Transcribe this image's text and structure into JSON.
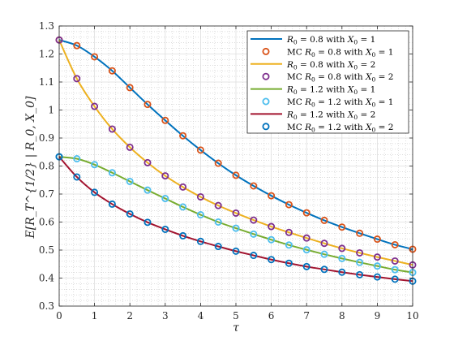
{
  "chart_data": {
    "type": "line",
    "xlabel": "τ",
    "ylabel": "E[R_T^{1/2} | R_0, X_0]",
    "xlim": [
      0,
      10
    ],
    "ylim": [
      0.3,
      1.3
    ],
    "xticks": [
      0,
      1,
      2,
      3,
      4,
      5,
      6,
      7,
      8,
      9,
      10
    ],
    "yticks": [
      0.3,
      0.4,
      0.5,
      0.6,
      0.7,
      0.8,
      0.9,
      1.0,
      1.1,
      1.2,
      1.3
    ],
    "ytick_labels": [
      "0.3",
      "0.4",
      "0.5",
      "0.6",
      "0.7",
      "0.8",
      "0.9",
      "1",
      "1.1",
      "1.2",
      "1.3"
    ],
    "grid": true,
    "minor_grid": true,
    "legend_position": "top-right",
    "curves": [
      {
        "name": "R_0 = 0.8 with X_0 = 1",
        "legend": {
          "lhs": "R",
          "sub": "0",
          "rhs": " = 0.8 with ",
          "lhs2": "X",
          "sub2": "0",
          "rhs2": " = 1"
        },
        "color": "#0072BD",
        "x": [
          0,
          0.5,
          1,
          1.5,
          2,
          2.5,
          3,
          3.5,
          4,
          4.5,
          5,
          5.5,
          6,
          6.5,
          7,
          7.5,
          8,
          8.5,
          9,
          9.5,
          10
        ],
        "y": [
          1.25,
          1.23,
          1.19,
          1.14,
          1.08,
          1.02,
          0.963,
          0.908,
          0.857,
          0.81,
          0.767,
          0.729,
          0.694,
          0.662,
          0.633,
          0.606,
          0.582,
          0.56,
          0.539,
          0.519,
          0.503
        ]
      },
      {
        "name": "R_0 = 0.8 with X_0 = 2",
        "legend": {
          "lhs": "R",
          "sub": "0",
          "rhs": " = 0.8 with ",
          "lhs2": "X",
          "sub2": "0",
          "rhs2": " = 2"
        },
        "color": "#EDB120",
        "x": [
          0,
          0.5,
          1,
          1.5,
          2,
          2.5,
          3,
          3.5,
          4,
          4.5,
          5,
          5.5,
          6,
          6.5,
          7,
          7.5,
          8,
          8.5,
          9,
          9.5,
          10
        ],
        "y": [
          1.25,
          1.112,
          1.013,
          0.932,
          0.867,
          0.812,
          0.765,
          0.725,
          0.69,
          0.659,
          0.632,
          0.607,
          0.584,
          0.563,
          0.543,
          0.524,
          0.506,
          0.49,
          0.475,
          0.461,
          0.447
        ]
      },
      {
        "name": "R_0 = 1.2 with X_0 = 1",
        "legend": {
          "lhs": "R",
          "sub": "0",
          "rhs": " = 1.2 with ",
          "lhs2": "X",
          "sub2": "0",
          "rhs2": " = 1"
        },
        "color": "#77AC30",
        "x": [
          0,
          0.5,
          1,
          1.5,
          2,
          2.5,
          3,
          3.5,
          4,
          4.5,
          5,
          5.5,
          6,
          6.5,
          7,
          7.5,
          8,
          8.5,
          9,
          9.5,
          10
        ],
        "y": [
          0.833,
          0.826,
          0.805,
          0.776,
          0.745,
          0.714,
          0.684,
          0.654,
          0.626,
          0.6,
          0.578,
          0.557,
          0.537,
          0.518,
          0.501,
          0.485,
          0.47,
          0.456,
          0.443,
          0.43,
          0.42
        ]
      },
      {
        "name": "R_0 = 1.2 with X_0 = 2",
        "legend": {
          "lhs": "R",
          "sub": "0",
          "rhs": " = 1.2 with ",
          "lhs2": "X",
          "sub2": "0",
          "rhs2": " = 2"
        },
        "color": "#A2142F",
        "x": [
          0,
          0.5,
          1,
          1.5,
          2,
          2.5,
          3,
          3.5,
          4,
          4.5,
          5,
          5.5,
          6,
          6.5,
          7,
          7.5,
          8,
          8.5,
          9,
          9.5,
          10
        ],
        "y": [
          0.833,
          0.761,
          0.706,
          0.664,
          0.629,
          0.599,
          0.574,
          0.551,
          0.531,
          0.513,
          0.496,
          0.481,
          0.466,
          0.453,
          0.441,
          0.431,
          0.421,
          0.412,
          0.404,
          0.396,
          0.389
        ]
      }
    ],
    "mc_series": [
      {
        "name": "MC R_0 = 0.8 with X_0 = 1",
        "legend": {
          "pre": "MC ",
          "lhs": "R",
          "sub": "0",
          "rhs": " = 0.8 with ",
          "lhs2": "X",
          "sub2": "0",
          "rhs2": " = 1"
        },
        "color": "#D95319",
        "curve_index": 0
      },
      {
        "name": "MC R_0 = 0.8 with X_0 = 2",
        "legend": {
          "pre": "MC ",
          "lhs": "R",
          "sub": "0",
          "rhs": " = 0.8 with ",
          "lhs2": "X",
          "sub2": "0",
          "rhs2": " = 2"
        },
        "color": "#7E2F8E",
        "curve_index": 1
      },
      {
        "name": "MC R_0 = 1.2 with X_0 = 1",
        "legend": {
          "pre": "MC ",
          "lhs": "R",
          "sub": "0",
          "rhs": " = 1.2 with ",
          "lhs2": "X",
          "sub2": "0",
          "rhs2": " = 1"
        },
        "color": "#4DBEEE",
        "curve_index": 2
      },
      {
        "name": "MC R_0 = 1.2 with X_0 = 2",
        "legend": {
          "pre": "MC ",
          "lhs": "R",
          "sub": "0",
          "rhs": " = 1.2 with ",
          "lhs2": "X",
          "sub2": "0",
          "rhs2": " = 2"
        },
        "color": "#0072BD",
        "curve_index": 3
      }
    ]
  }
}
